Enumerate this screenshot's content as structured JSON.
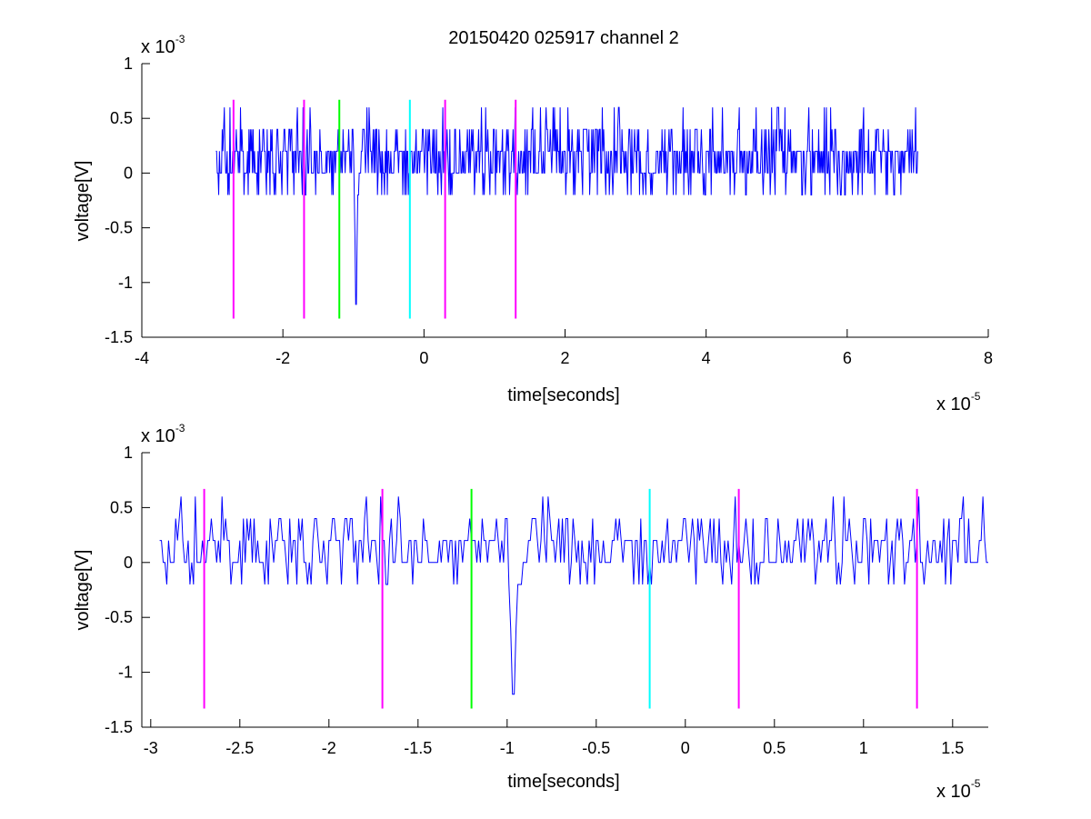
{
  "title": "20150420 025917 channel 2",
  "colors": {
    "signal": "#0000ff",
    "marker_magenta": "#ff00ff",
    "marker_green": "#00ff00",
    "marker_cyan": "#00ffff",
    "axes": "#000000",
    "background": "#ffffff"
  },
  "chart_data": [
    {
      "type": "line",
      "title": "20150420 025917 channel 2",
      "xlabel": "time[seconds]",
      "ylabel": "voltage[V]",
      "x_multiplier": {
        "base": "x 10",
        "exponent": "-5"
      },
      "y_multiplier": {
        "base": "x 10",
        "exponent": "-3"
      },
      "xlim": [
        -4,
        8
      ],
      "ylim": [
        -1.5,
        1
      ],
      "x_ticks": [
        -4,
        -2,
        0,
        2,
        4,
        6,
        8
      ],
      "x_tick_labels": [
        "-4",
        "-2",
        "0",
        "2",
        "4",
        "6",
        "8"
      ],
      "y_ticks": [
        1,
        0.5,
        0,
        -0.5,
        -1,
        -1.5
      ],
      "y_tick_labels": [
        "1",
        "0.5",
        "0",
        "-0.5",
        "-1",
        "-1.5"
      ],
      "series": [
        {
          "color": "#0000ff",
          "x_range": [
            -2.95,
            7.0
          ],
          "samples": 1000,
          "levels": [
            -0.2,
            0,
            0.2,
            0.4,
            0.6
          ],
          "spike": {
            "x": -0.97,
            "y": -1.2
          }
        }
      ],
      "markers": [
        {
          "x": -2.7,
          "ymin": -1.33,
          "ymax": 0.67,
          "color": "#ff00ff"
        },
        {
          "x": -1.7,
          "ymin": -1.33,
          "ymax": 0.67,
          "color": "#ff00ff"
        },
        {
          "x": -1.2,
          "ymin": -1.33,
          "ymax": 0.67,
          "color": "#00ff00"
        },
        {
          "x": -0.2,
          "ymin": -1.33,
          "ymax": 0.67,
          "color": "#00ffff"
        },
        {
          "x": 0.3,
          "ymin": -1.33,
          "ymax": 0.67,
          "color": "#ff00ff"
        },
        {
          "x": 1.3,
          "ymin": -1.33,
          "ymax": 0.67,
          "color": "#ff00ff"
        }
      ],
      "grid": false,
      "legend": "none"
    },
    {
      "type": "line",
      "xlabel": "time[seconds]",
      "ylabel": "voltage[V]",
      "x_multiplier": {
        "base": "x 10",
        "exponent": "-5"
      },
      "y_multiplier": {
        "base": "x 10",
        "exponent": "-3"
      },
      "xlim": [
        -3.05,
        1.7
      ],
      "ylim": [
        -1.5,
        1
      ],
      "x_ticks": [
        -3,
        -2.5,
        -2,
        -1.5,
        -1,
        -0.5,
        0,
        0.5,
        1,
        1.5
      ],
      "x_tick_labels": [
        "-3",
        "-2.5",
        "-2",
        "-1.5",
        "-1",
        "-0.5",
        "0",
        "0.5",
        "1",
        "1.5"
      ],
      "y_ticks": [
        1,
        0.5,
        0,
        -0.5,
        -1,
        -1.5
      ],
      "y_tick_labels": [
        "1",
        "0.5",
        "0",
        "-0.5",
        "-1",
        "-1.5"
      ],
      "series": [
        {
          "color": "#0000ff",
          "x_range": [
            -2.95,
            1.7
          ],
          "samples": 466,
          "levels": [
            -0.2,
            0,
            0.2,
            0.4,
            0.6
          ],
          "spike": {
            "x": -0.97,
            "y": -1.2
          }
        }
      ],
      "markers": [
        {
          "x": -2.7,
          "ymin": -1.33,
          "ymax": 0.67,
          "color": "#ff00ff"
        },
        {
          "x": -1.7,
          "ymin": -1.33,
          "ymax": 0.67,
          "color": "#ff00ff"
        },
        {
          "x": -1.2,
          "ymin": -1.33,
          "ymax": 0.67,
          "color": "#00ff00"
        },
        {
          "x": -0.2,
          "ymin": -1.33,
          "ymax": 0.67,
          "color": "#00ffff"
        },
        {
          "x": 0.3,
          "ymin": -1.33,
          "ymax": 0.67,
          "color": "#ff00ff"
        },
        {
          "x": 1.3,
          "ymin": -1.33,
          "ymax": 0.67,
          "color": "#ff00ff"
        }
      ],
      "grid": false,
      "legend": "none"
    }
  ]
}
